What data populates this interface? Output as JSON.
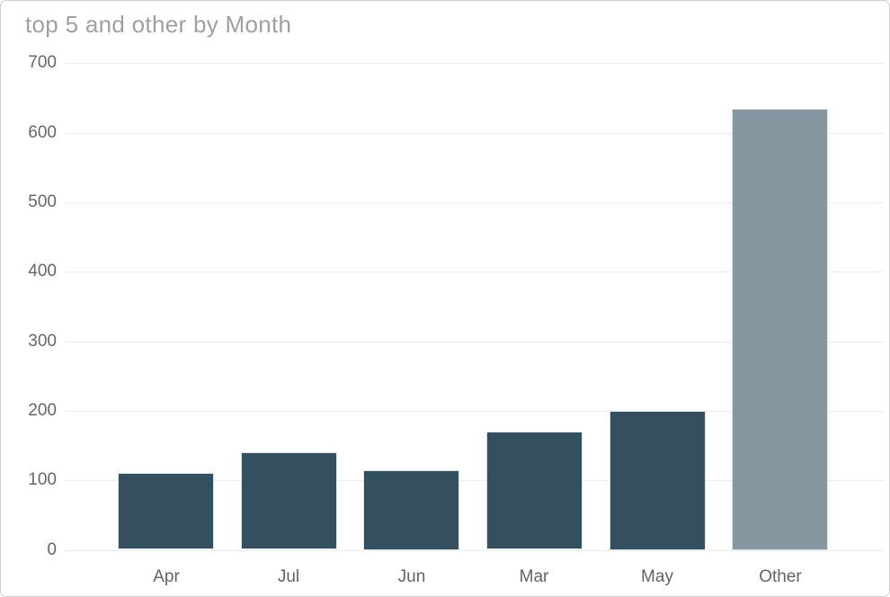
{
  "chart_data": {
    "type": "bar",
    "title": "top 5 and other by Month",
    "categories": [
      "Apr",
      "Jul",
      "Jun",
      "Mar",
      "May",
      "Other"
    ],
    "values": [
      110,
      140,
      115,
      170,
      200,
      635
    ],
    "xlabel": "",
    "ylabel": "",
    "ylim": [
      0,
      700
    ],
    "yticks": [
      "0",
      "100",
      "200",
      "300",
      "400",
      "500",
      "600",
      "700"
    ],
    "ytick_values": [
      0,
      100,
      200,
      300,
      400,
      500,
      600,
      700
    ],
    "grid": "horizontal",
    "legend": "none",
    "bar_colors": [
      "#344f5e",
      "#344f5e",
      "#344f5e",
      "#344f5e",
      "#344f5e",
      "#8797a1"
    ]
  },
  "colors": {
    "bar": "#344f5e",
    "other_bar": "#8797a1",
    "gridline": "#ececec",
    "axis_label": "#666666",
    "title": "#9ea0a3",
    "container_border": "#cdcdcd",
    "bar_border": "#dde4e8",
    "background": "#ffffff"
  }
}
